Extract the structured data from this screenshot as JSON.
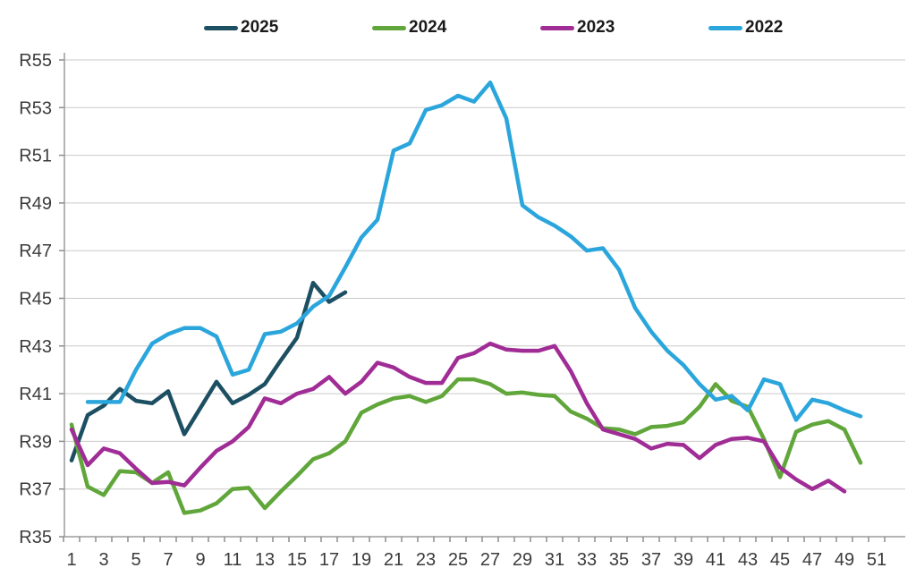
{
  "chart_data": {
    "type": "line",
    "title": "",
    "xlabel": "",
    "ylabel": "",
    "x_axis": {
      "min": 1,
      "max": 51,
      "tick_every": 1,
      "label_every_odd": true,
      "tick_labels": [
        "1",
        "3",
        "5",
        "7",
        "9",
        "11",
        "13",
        "15",
        "17",
        "19",
        "21",
        "23",
        "25",
        "27",
        "29",
        "31",
        "33",
        "35",
        "37",
        "39",
        "41",
        "43",
        "45",
        "47",
        "49",
        "51"
      ]
    },
    "y_axis": {
      "min": 35,
      "max": 55,
      "tick_step": 2,
      "prefix": "R",
      "tick_labels": [
        "R35",
        "R37",
        "R39",
        "R41",
        "R43",
        "R45",
        "R47",
        "R49",
        "R51",
        "R53",
        "R55"
      ]
    },
    "grid": true,
    "legend_position": "top",
    "series": [
      {
        "name": "2025",
        "color": "#1D4F63",
        "start_week": 1,
        "values": [
          38.2,
          40.1,
          40.5,
          41.2,
          40.7,
          40.6,
          41.1,
          39.3,
          40.4,
          41.5,
          40.6,
          40.95,
          41.4,
          42.4,
          43.35,
          45.65,
          44.85,
          45.25
        ]
      },
      {
        "name": "2024",
        "color": "#60A63A",
        "start_week": 1,
        "values": [
          39.7,
          37.1,
          36.75,
          37.75,
          37.7,
          37.25,
          37.7,
          36.0,
          36.1,
          36.4,
          37.0,
          37.05,
          36.2,
          36.9,
          37.55,
          38.25,
          38.5,
          39.0,
          40.2,
          40.55,
          40.8,
          40.9,
          40.65,
          40.9,
          41.6,
          41.6,
          41.4,
          41.0,
          41.05,
          40.95,
          40.9,
          40.25,
          39.95,
          39.55,
          39.5,
          39.3,
          39.6,
          39.65,
          39.8,
          40.45,
          41.4,
          40.7,
          40.45,
          39.1,
          37.5,
          39.4,
          39.7,
          39.85,
          39.5,
          38.1
        ]
      },
      {
        "name": "2023",
        "color": "#A02C96",
        "start_week": 1,
        "values": [
          39.5,
          38.0,
          38.7,
          38.5,
          37.85,
          37.25,
          37.3,
          37.15,
          37.9,
          38.6,
          39.0,
          39.6,
          40.8,
          40.6,
          41.0,
          41.2,
          41.7,
          41.0,
          41.5,
          42.3,
          42.1,
          41.7,
          41.45,
          41.45,
          42.5,
          42.7,
          43.1,
          42.85,
          42.8,
          42.8,
          43.0,
          41.95,
          40.6,
          39.5,
          39.3,
          39.1,
          38.7,
          38.9,
          38.85,
          38.3,
          38.85,
          39.1,
          39.15,
          39.0,
          37.9,
          37.4,
          37.0,
          37.35,
          36.9
        ]
      },
      {
        "name": "2022",
        "color": "#2BA6DC",
        "start_week": 2,
        "values": [
          40.65,
          40.65,
          40.65,
          42.0,
          43.1,
          43.5,
          43.75,
          43.75,
          43.4,
          41.8,
          42.0,
          43.5,
          43.6,
          43.95,
          44.65,
          45.1,
          46.3,
          47.55,
          48.3,
          51.2,
          51.5,
          52.9,
          53.1,
          53.5,
          53.25,
          54.05,
          52.55,
          48.9,
          48.4,
          48.05,
          47.6,
          47.0,
          47.1,
          46.2,
          44.6,
          43.6,
          42.8,
          42.2,
          41.4,
          40.75,
          40.9,
          40.3,
          41.6,
          41.4,
          39.9,
          40.75,
          40.6,
          40.3,
          40.05
        ]
      }
    ],
    "style": {
      "grid_color": "#C9C9C9",
      "axis_color": "#9B9B9B",
      "tick_color": "#8C8C8C",
      "label_color": "#3B3B3B",
      "line_width": 4.5
    }
  }
}
